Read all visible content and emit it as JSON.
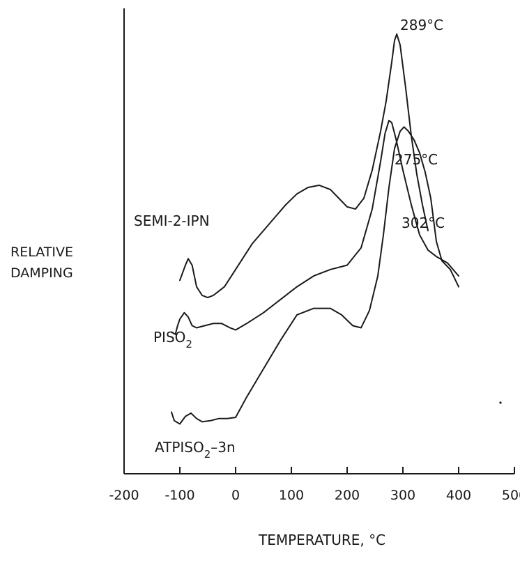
{
  "chart_data": {
    "type": "line",
    "title": "",
    "xlabel": "TEMPERATURE, °C",
    "ylabel": [
      "RELATIVE",
      "DAMPING"
    ],
    "xlim": [
      -200,
      500
    ],
    "xticks": [
      -200,
      -100,
      0,
      100,
      200,
      300,
      400,
      500
    ],
    "xtick_labels": [
      "-200",
      "-100",
      "0",
      "100",
      "200",
      "300",
      "400",
      "500"
    ],
    "y_scale": "relative (no numeric ticks)",
    "grid": false,
    "legend": "none; curves labeled directly",
    "series": [
      {
        "name": "SEMI-2-IPN",
        "x": [
          -100,
          -90,
          -85,
          -78,
          -70,
          -60,
          -50,
          -40,
          -30,
          -20,
          -10,
          0,
          15,
          30,
          50,
          70,
          90,
          110,
          130,
          150,
          170,
          185,
          200,
          215,
          230,
          245,
          260,
          270,
          280,
          285,
          289,
          295,
          305,
          315,
          325,
          335,
          345
        ],
        "y": [
          6.7,
          7.4,
          7.7,
          7.4,
          6.4,
          6.0,
          5.9,
          6.0,
          6.2,
          6.4,
          6.8,
          7.2,
          7.8,
          8.4,
          9.0,
          9.6,
          10.2,
          10.7,
          11.0,
          11.1,
          10.9,
          10.5,
          10.1,
          10.0,
          10.5,
          11.8,
          13.6,
          15.0,
          16.8,
          17.8,
          18.1,
          17.6,
          15.6,
          13.4,
          11.6,
          10.2,
          9.0
        ],
        "peak_label": "289°C"
      },
      {
        "name": "PISO2",
        "x": [
          -115,
          -108,
          -104,
          -100,
          -92,
          -85,
          -78,
          -70,
          -55,
          -40,
          -25,
          -10,
          0,
          20,
          50,
          80,
          110,
          140,
          170,
          200,
          225,
          245,
          260,
          268,
          275,
          280,
          288,
          300,
          315,
          330,
          345,
          360,
          380,
          400
        ],
        "y": [
          4.3,
          4.2,
          4.6,
          4.9,
          5.2,
          5.0,
          4.6,
          4.5,
          4.6,
          4.7,
          4.7,
          4.5,
          4.4,
          4.7,
          5.2,
          5.8,
          6.4,
          6.9,
          7.2,
          7.4,
          8.2,
          10.0,
          12.2,
          13.5,
          14.1,
          14.0,
          13.2,
          11.8,
          10.2,
          8.8,
          8.1,
          7.8,
          7.5,
          6.9
        ],
        "peak_label": "275°C"
      },
      {
        "name": "ATPISO2-3n",
        "x": [
          -115,
          -110,
          -100,
          -90,
          -80,
          -70,
          -60,
          -45,
          -30,
          -15,
          0,
          20,
          50,
          80,
          110,
          140,
          170,
          190,
          210,
          225,
          240,
          255,
          265,
          275,
          285,
          295,
          302,
          310,
          320,
          330,
          340,
          350,
          360,
          370,
          385,
          400
        ],
        "y": [
          0.6,
          0.2,
          0.05,
          0.4,
          0.55,
          0.3,
          0.15,
          0.2,
          0.3,
          0.3,
          0.35,
          1.3,
          2.6,
          3.9,
          5.1,
          5.4,
          5.4,
          5.1,
          4.6,
          4.5,
          5.3,
          6.9,
          8.8,
          11.0,
          12.8,
          13.6,
          13.8,
          13.6,
          13.2,
          12.6,
          11.7,
          10.5,
          8.5,
          7.6,
          7.2,
          6.4
        ],
        "peak_label": "302°C"
      }
    ],
    "annotations": [
      "289°C",
      "275°C",
      "302°C"
    ]
  }
}
